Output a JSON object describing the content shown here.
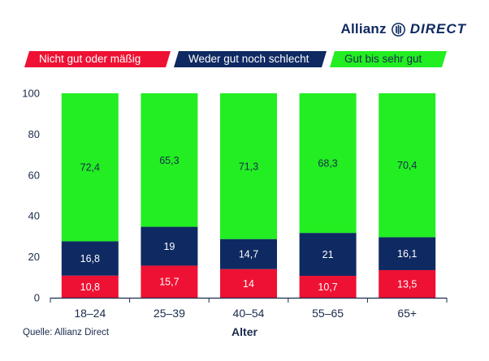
{
  "brand": {
    "name": "Allianz",
    "suffix": "DIRECT",
    "color": "#0f2a62"
  },
  "source": "Quelle: Allianz Direct",
  "chart_data": {
    "type": "bar",
    "stacked": true,
    "categories": [
      "18–24",
      "25–39",
      "40–54",
      "55–65",
      "65+"
    ],
    "series": [
      {
        "name": "Nicht gut oder mäßig",
        "color": "#ee1133",
        "values": [
          10.8,
          15.7,
          14,
          10.7,
          13.5
        ],
        "labels": [
          "10,8",
          "15,7",
          "14",
          "10,7",
          "13,5"
        ],
        "label_color": "#ffffff"
      },
      {
        "name": "Weder gut noch schlecht",
        "color": "#0f2a62",
        "values": [
          16.8,
          19,
          14.7,
          21,
          16.1
        ],
        "labels": [
          "16,8",
          "19",
          "14,7",
          "21",
          "16,1"
        ],
        "label_color": "#ffffff"
      },
      {
        "name": "Gut bis sehr gut",
        "color": "#22ee22",
        "values": [
          72.4,
          65.3,
          71.3,
          68.3,
          70.4
        ],
        "labels": [
          "72,4",
          "65,3",
          "71,3",
          "68,3",
          "70,4"
        ],
        "label_color": "#1a2b4c"
      }
    ],
    "xlabel": "Alter",
    "ylabel": "",
    "ylim": [
      0,
      100
    ],
    "yticks": [
      0,
      20,
      40,
      60,
      80,
      100
    ],
    "legend_position": "top",
    "grid": false
  }
}
